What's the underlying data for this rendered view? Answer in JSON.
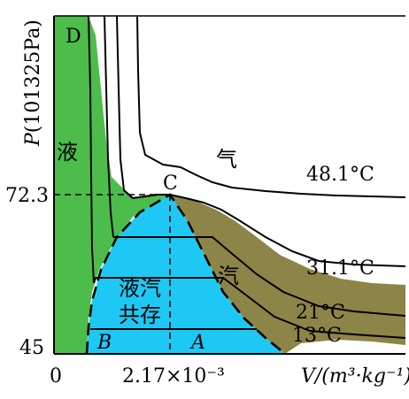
{
  "colors": {
    "liquid": "#4cbd4b",
    "coexist": "#1ec8f5",
    "vapor": "#8d8547",
    "gas": "#ffffff"
  },
  "axes": {
    "y_label_italic": "P",
    "y_label_rest": "(101325Pa)",
    "x_label_italic": "V",
    "x_label_rest": "/(m³·kg⁻¹)",
    "y_ticks": [
      "72.3",
      "45"
    ],
    "x_ticks": [
      "0",
      "2.17×10⁻³"
    ]
  },
  "points": {
    "critical": "C",
    "D": "D",
    "A": "A",
    "B": "B"
  },
  "isotherms": [
    "48.1°C",
    "31.1°C",
    "21°C",
    "13°C"
  ],
  "regions": {
    "liquid": "液",
    "gas": "气",
    "vapor": "汽",
    "coexist_line1": "液汽",
    "coexist_line2": "共存"
  }
}
